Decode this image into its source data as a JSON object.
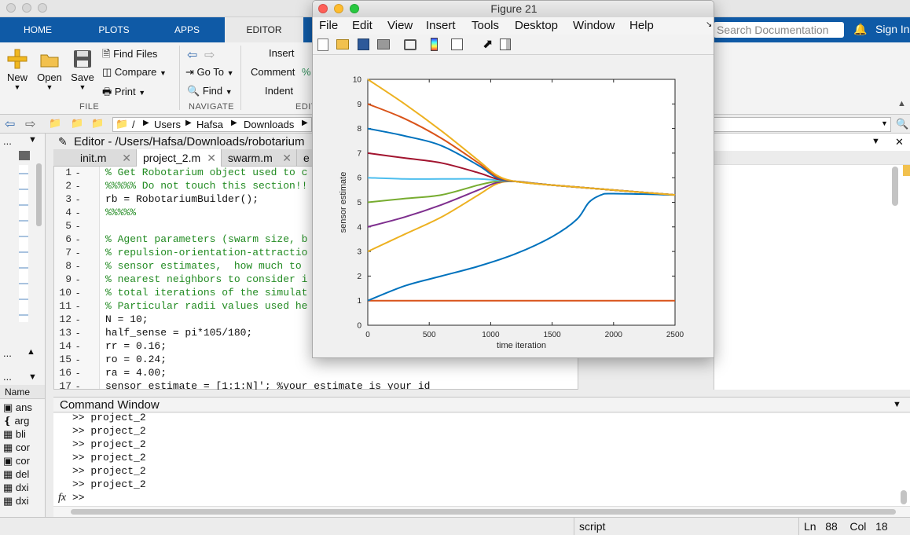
{
  "main_window": {
    "tabs": [
      "HOME",
      "PLOTS",
      "APPS",
      "EDITOR"
    ],
    "search_placeholder": "Search Documentation",
    "sign_in": "Sign In"
  },
  "ribbon": {
    "file": {
      "new": "New",
      "open": "Open",
      "save": "Save",
      "find_files": "Find Files",
      "compare": "Compare",
      "print": "Print",
      "section": "FILE"
    },
    "navigate": {
      "go_to": "Go To",
      "find": "Find",
      "section": "NAVIGATE"
    },
    "edit": {
      "insert": "Insert",
      "comment": "Comment",
      "indent": "Indent",
      "section": "EDIT"
    }
  },
  "address_bar": {
    "path": [
      "/",
      "Users",
      "Hafsa",
      "Downloads"
    ]
  },
  "editor": {
    "title": "Editor - /Users/Hafsa/Downloads/robotarium",
    "tabs": [
      "init.m",
      "project_2.m",
      "swarm.m",
      "e"
    ],
    "active_tab": "project_2.m",
    "lines": [
      {
        "n": "1",
        "text": "% Get Robotarium object used to c",
        "comment": true
      },
      {
        "n": "2",
        "text": "%%%%% Do not touch this section!!",
        "comment": true
      },
      {
        "n": "3",
        "text": "rb = RobotariumBuilder();",
        "comment": false
      },
      {
        "n": "4",
        "text": "%%%%%",
        "comment": true
      },
      {
        "n": "5",
        "text": "",
        "comment": false
      },
      {
        "n": "6",
        "text": "% Agent parameters (swarm size, b",
        "comment": true
      },
      {
        "n": "7",
        "text": "% repulsion-orientation-attractio",
        "comment": true
      },
      {
        "n": "8",
        "text": "% sensor estimates,  how much to",
        "comment": true
      },
      {
        "n": "9",
        "text": "% nearest neighbors to consider i",
        "comment": true
      },
      {
        "n": "10",
        "text": "% total iterations of the simulat",
        "comment": true
      },
      {
        "n": "11",
        "text": "% Particular radii values used he",
        "comment": true
      },
      {
        "n": "12",
        "text": "N = 10;",
        "comment": false
      },
      {
        "n": "13",
        "text": "half_sense = pi*105/180;",
        "comment": false
      },
      {
        "n": "14",
        "text": "rr = 0.16;",
        "comment": false
      },
      {
        "n": "15",
        "text": "ro = 0.24;",
        "comment": false
      },
      {
        "n": "16",
        "text": "ra = 4.00;",
        "comment": false
      },
      {
        "n": "17",
        "text": "sensor_estimate = [1:1:N]'; %your estimate is your id",
        "comment": false
      }
    ]
  },
  "workspace": {
    "header": "Name",
    "items": [
      "ans",
      "arg",
      "bli",
      "cor",
      "cor",
      "del",
      "dxi",
      "dxi"
    ]
  },
  "command_window": {
    "title": "Command Window",
    "history": [
      ">> project_2",
      ">> project_2",
      ">> project_2",
      ">> project_2",
      ">> project_2",
      ">> project_2"
    ],
    "prompt": ">>",
    "fx": "fx"
  },
  "status_bar": {
    "mode": "script",
    "ln_label": "Ln",
    "ln": "88",
    "col_label": "Col",
    "col": "18"
  },
  "figure": {
    "title": "Figure 21",
    "menu": [
      "File",
      "Edit",
      "View",
      "Insert",
      "Tools",
      "Desktop",
      "Window",
      "Help"
    ]
  },
  "chart_data": {
    "type": "line",
    "xlabel": "time iteration",
    "ylabel": "sensor estimate",
    "xlim": [
      0,
      2500
    ],
    "ylim": [
      0,
      10
    ],
    "xticks": [
      0,
      500,
      1000,
      1500,
      2000,
      2500
    ],
    "yticks": [
      0,
      1,
      2,
      3,
      4,
      5,
      6,
      7,
      8,
      9,
      10
    ],
    "grid": false,
    "series": [
      {
        "color": "#d95319",
        "x": [
          0,
          2500
        ],
        "y": [
          1,
          1
        ]
      },
      {
        "color": "#0072bd",
        "x": [
          0,
          300,
          600,
          900,
          1200,
          1500,
          1700,
          1800,
          1900,
          2000,
          2500
        ],
        "y": [
          1.0,
          1.6,
          2.0,
          2.4,
          2.9,
          3.6,
          4.3,
          5.0,
          5.3,
          5.35,
          5.3
        ]
      },
      {
        "color": "#edb120",
        "x": [
          0,
          300,
          600,
          900,
          1050,
          1200,
          1500,
          2500
        ],
        "y": [
          3.0,
          3.7,
          4.4,
          5.3,
          5.75,
          5.85,
          5.7,
          5.3
        ]
      },
      {
        "color": "#7e2f8e",
        "x": [
          0,
          300,
          600,
          900,
          1050,
          1200,
          1500,
          2500
        ],
        "y": [
          4.0,
          4.4,
          4.9,
          5.5,
          5.8,
          5.85,
          5.7,
          5.3
        ]
      },
      {
        "color": "#77ac30",
        "x": [
          0,
          300,
          600,
          900,
          1050,
          1200,
          1500,
          2500
        ],
        "y": [
          5.0,
          5.15,
          5.3,
          5.7,
          5.85,
          5.85,
          5.7,
          5.3
        ]
      },
      {
        "color": "#4dbeee",
        "x": [
          0,
          300,
          600,
          900,
          1050,
          1200,
          1500,
          2500
        ],
        "y": [
          6.0,
          5.95,
          5.95,
          5.95,
          5.9,
          5.85,
          5.7,
          5.3
        ]
      },
      {
        "color": "#a2142f",
        "x": [
          0,
          300,
          600,
          900,
          1050,
          1200,
          1500,
          2500
        ],
        "y": [
          7.0,
          6.8,
          6.6,
          6.2,
          5.95,
          5.85,
          5.7,
          5.3
        ]
      },
      {
        "color": "#0072bd",
        "x": [
          0,
          300,
          600,
          900,
          1050,
          1200,
          1500,
          2500
        ],
        "y": [
          8.0,
          7.7,
          7.3,
          6.5,
          6.0,
          5.85,
          5.7,
          5.3
        ]
      },
      {
        "color": "#d95319",
        "x": [
          0,
          300,
          600,
          900,
          1050,
          1200,
          1500,
          2500
        ],
        "y": [
          9.0,
          8.4,
          7.6,
          6.6,
          6.05,
          5.85,
          5.7,
          5.3
        ]
      },
      {
        "color": "#edb120",
        "x": [
          0,
          300,
          600,
          900,
          1050,
          1200,
          1500,
          2500
        ],
        "y": [
          10.0,
          9.0,
          7.9,
          6.7,
          6.1,
          5.85,
          5.7,
          5.3
        ]
      }
    ]
  }
}
